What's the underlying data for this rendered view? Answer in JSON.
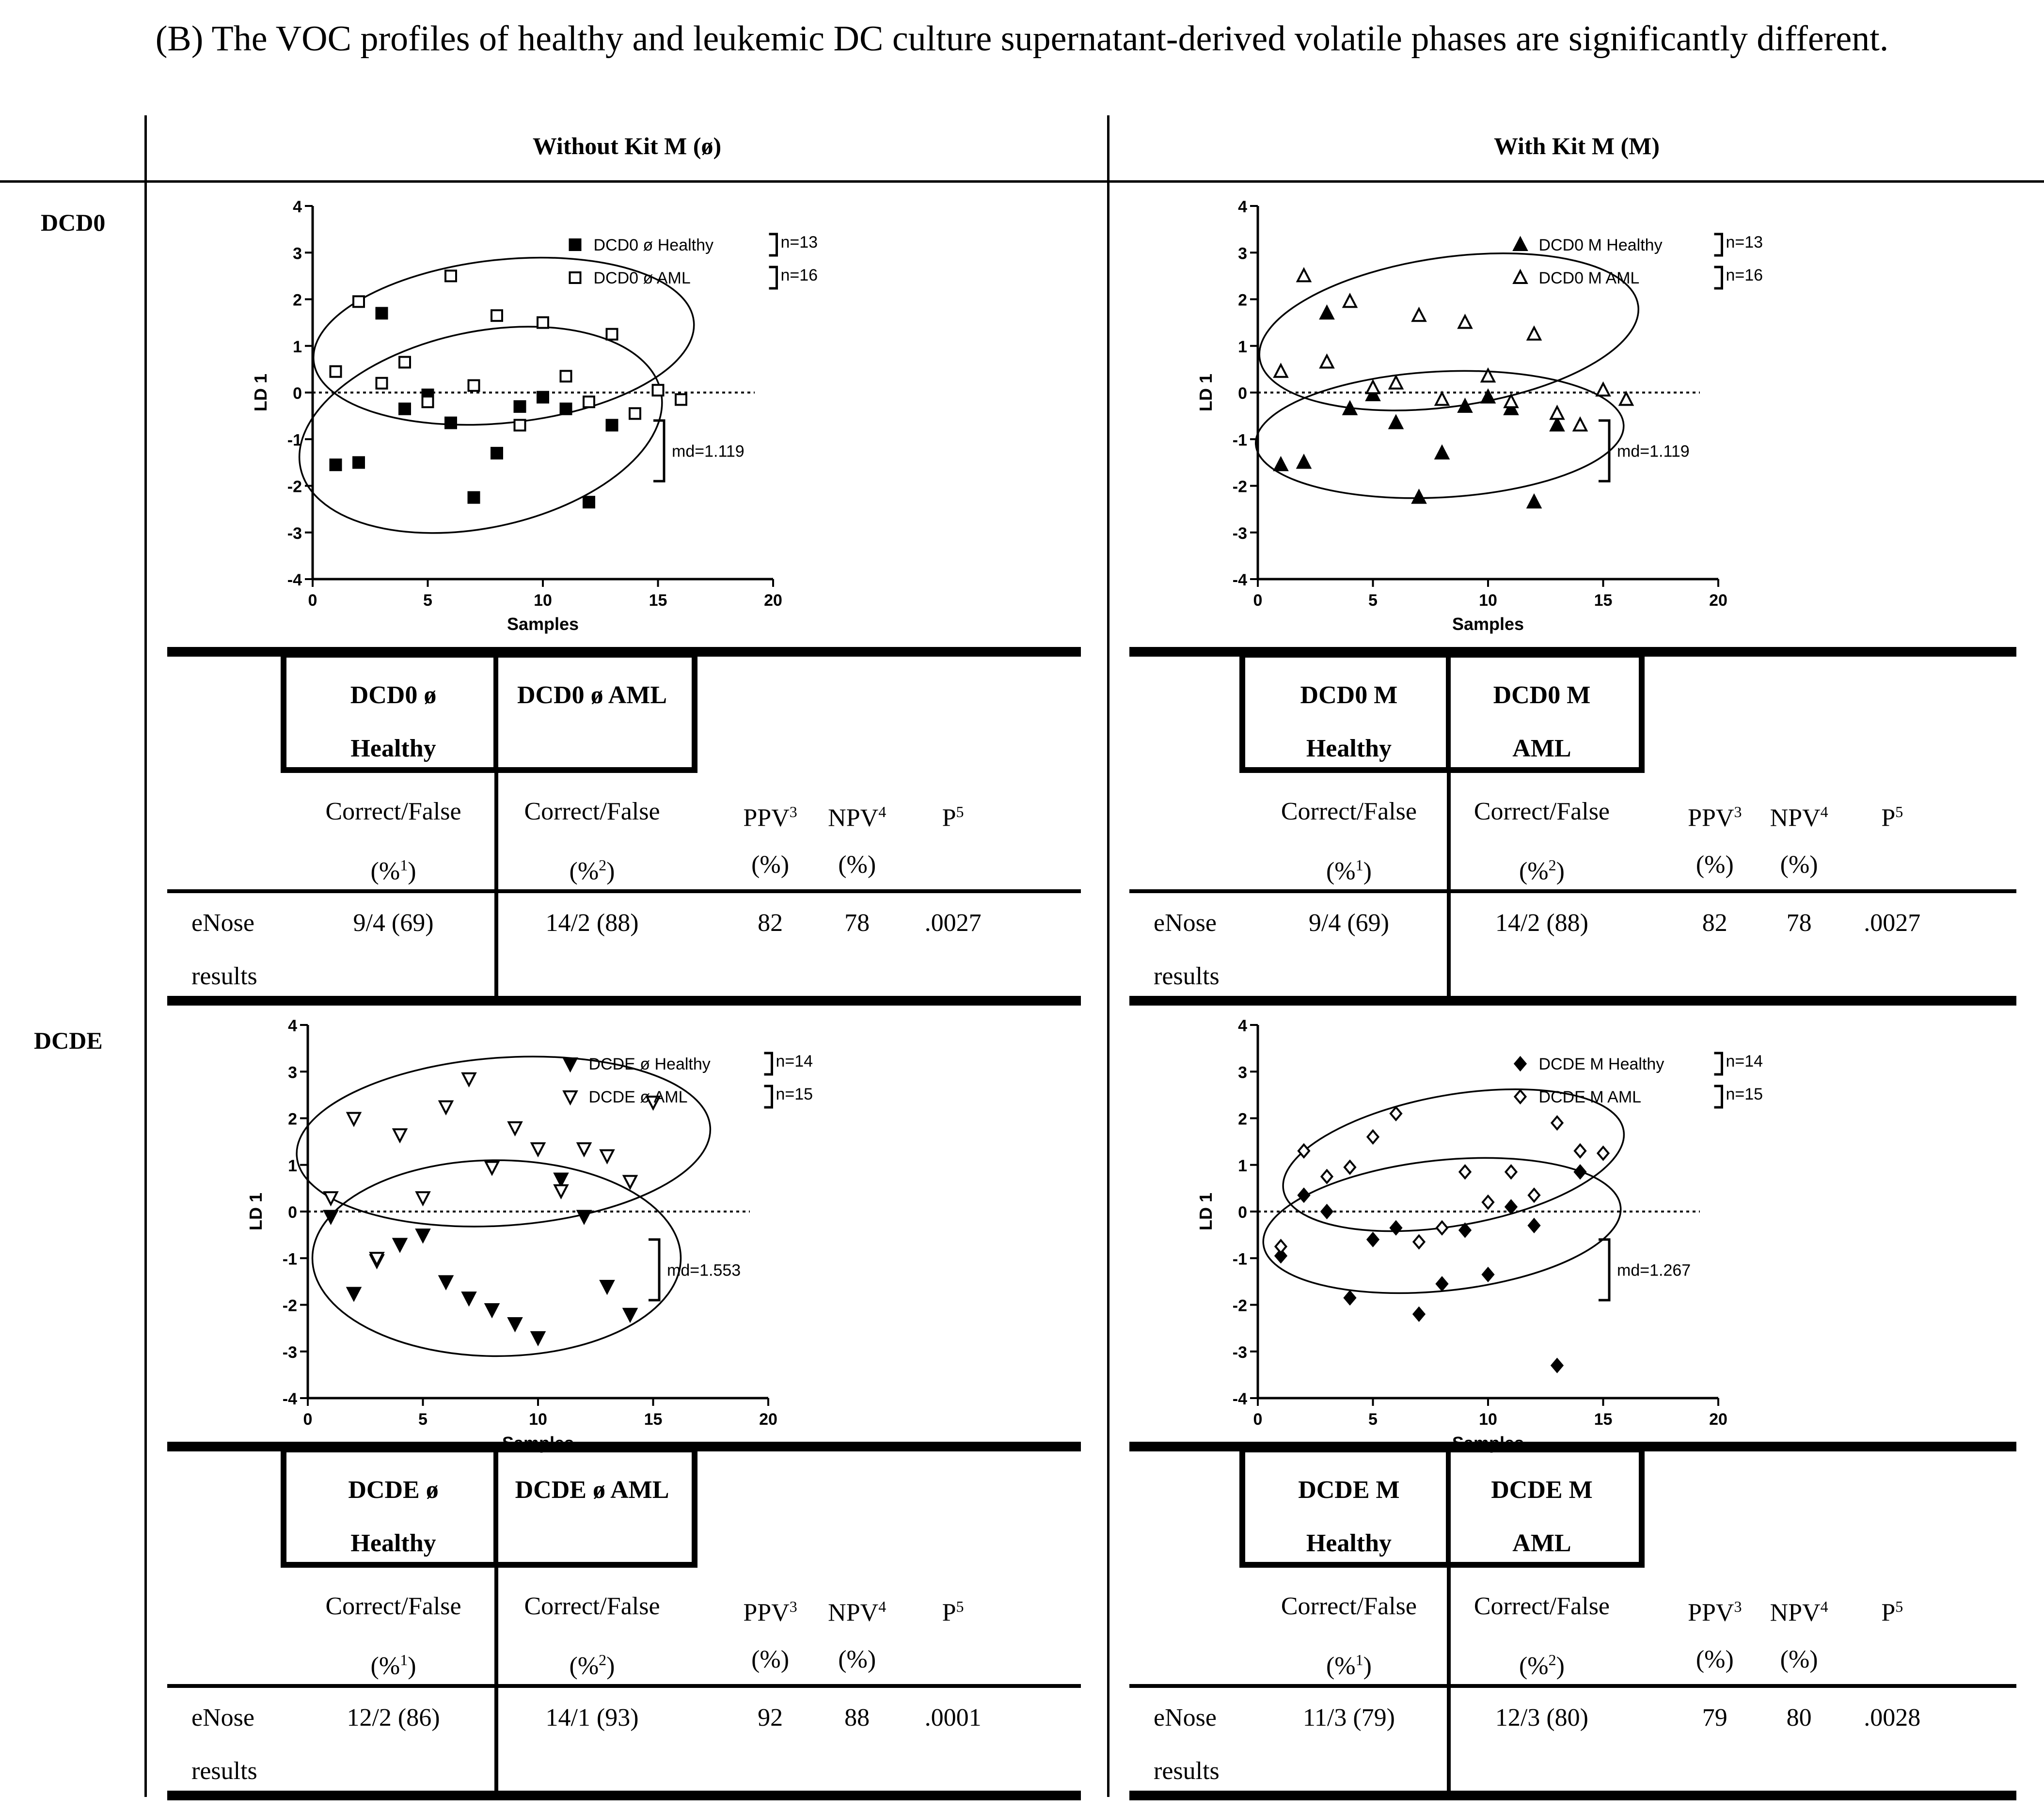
{
  "title": "(B) The VOC profiles of healthy and leukemic DC culture supernatant-derived volatile phases are significantly different.",
  "columns": {
    "without": "Without Kit M (ø)",
    "with": "With Kit M (M)"
  },
  "rows": {
    "dcd0": "DCD0",
    "dcde": "DCDE"
  },
  "chart_data": [
    {
      "type": "scatter",
      "panel": "DCD0 without Kit M",
      "xlabel": "Samples",
      "ylabel": "LD 1",
      "xlim": [
        0,
        20
      ],
      "ylim": [
        -4,
        4
      ],
      "xticks": [
        "0",
        "5",
        "10",
        "15",
        "20"
      ],
      "yticks": [
        "4",
        "3",
        "2",
        "1",
        "0",
        "-1",
        "-2",
        "-3",
        "-4"
      ],
      "marker": "square",
      "series": [
        {
          "name": "DCD0 ø Healthy",
          "n": "n=13",
          "filled": true,
          "points": [
            [
              1,
              -1.55
            ],
            [
              2,
              -1.5
            ],
            [
              3,
              1.7
            ],
            [
              4,
              -0.35
            ],
            [
              5,
              -0.05
            ],
            [
              6,
              -0.65
            ],
            [
              7,
              -2.25
            ],
            [
              8,
              -1.3
            ],
            [
              9,
              -0.3
            ],
            [
              10,
              -0.1
            ],
            [
              11,
              -0.35
            ],
            [
              12,
              -2.35
            ],
            [
              13,
              -0.7
            ]
          ]
        },
        {
          "name": "DCD0 ø AML",
          "n": "n=16",
          "filled": false,
          "points": [
            [
              1,
              0.45
            ],
            [
              2,
              1.95
            ],
            [
              3,
              0.2
            ],
            [
              4,
              0.65
            ],
            [
              5,
              -0.2
            ],
            [
              6,
              2.5
            ],
            [
              7,
              0.15
            ],
            [
              8,
              1.65
            ],
            [
              9,
              -0.7
            ],
            [
              10,
              1.5
            ],
            [
              11,
              0.35
            ],
            [
              12,
              -0.2
            ],
            [
              13,
              1.25
            ],
            [
              14,
              -0.45
            ],
            [
              15,
              0.05
            ],
            [
              16,
              -0.15
            ]
          ]
        }
      ],
      "ellipses": [
        {
          "group": "AML",
          "cx": 8.3,
          "cy": 1.1,
          "rx": 8.3,
          "ry": 1.75,
          "rotation": -6
        },
        {
          "group": "Healthy",
          "cx": 7.3,
          "cy": -0.8,
          "rx": 8.0,
          "ry": 2.1,
          "rotation": -12
        }
      ],
      "annotation": "md=1.119"
    },
    {
      "type": "scatter",
      "panel": "DCD0 with Kit M",
      "xlabel": "Samples",
      "ylabel": "LD 1",
      "xlim": [
        0,
        20
      ],
      "ylim": [
        -4,
        4
      ],
      "xticks": [
        "0",
        "5",
        "10",
        "15",
        "20"
      ],
      "yticks": [
        "4",
        "3",
        "2",
        "1",
        "0",
        "-1",
        "-2",
        "-3",
        "-4"
      ],
      "marker": "triangle-up",
      "series": [
        {
          "name": "DCD0 M Healthy",
          "n": "n=13",
          "filled": true,
          "points": [
            [
              1,
              -1.55
            ],
            [
              2,
              -1.5
            ],
            [
              3,
              1.7
            ],
            [
              4,
              -0.35
            ],
            [
              5,
              -0.05
            ],
            [
              6,
              -0.65
            ],
            [
              7,
              -2.25
            ],
            [
              8,
              -1.3
            ],
            [
              9,
              -0.3
            ],
            [
              10,
              -0.1
            ],
            [
              11,
              -0.35
            ],
            [
              12,
              -2.35
            ],
            [
              13,
              -0.7
            ]
          ]
        },
        {
          "name": "DCD0 M AML",
          "n": "n=16",
          "filled": false,
          "points": [
            [
              1,
              0.45
            ],
            [
              2,
              2.5
            ],
            [
              3,
              0.65
            ],
            [
              4,
              1.95
            ],
            [
              5,
              0.1
            ],
            [
              6,
              0.2
            ],
            [
              7,
              1.65
            ],
            [
              8,
              -0.15
            ],
            [
              9,
              1.5
            ],
            [
              10,
              0.35
            ],
            [
              11,
              -0.2
            ],
            [
              12,
              1.25
            ],
            [
              13,
              -0.45
            ],
            [
              14,
              -0.7
            ],
            [
              15,
              0.05
            ],
            [
              16,
              -0.15
            ]
          ]
        }
      ],
      "ellipses": [
        {
          "group": "AML",
          "cx": 8.3,
          "cy": 1.3,
          "rx": 8.3,
          "ry": 1.6,
          "rotation": -8
        },
        {
          "group": "Healthy",
          "cx": 7.9,
          "cy": -0.9,
          "rx": 8.0,
          "ry": 1.35,
          "rotation": -3
        }
      ],
      "annotation": "md=1.119"
    },
    {
      "type": "scatter",
      "panel": "DCDE without Kit M",
      "xlabel": "Samples",
      "ylabel": "LD 1",
      "xlim": [
        0,
        20
      ],
      "ylim": [
        -4,
        4
      ],
      "xticks": [
        "0",
        "5",
        "10",
        "15",
        "20"
      ],
      "yticks": [
        "4",
        "3",
        "2",
        "1",
        "0",
        "-1",
        "-2",
        "-3",
        "-4"
      ],
      "marker": "triangle-down",
      "series": [
        {
          "name": "DCDE ø Healthy",
          "n": "n=14",
          "filled": true,
          "points": [
            [
              1,
              -0.1
            ],
            [
              2,
              -1.75
            ],
            [
              3,
              -1.05
            ],
            [
              4,
              -0.7
            ],
            [
              5,
              -0.5
            ],
            [
              6,
              -1.5
            ],
            [
              7,
              -1.85
            ],
            [
              8,
              -2.1
            ],
            [
              9,
              -2.4
            ],
            [
              10,
              -2.7
            ],
            [
              11,
              0.7
            ],
            [
              12,
              -0.1
            ],
            [
              13,
              -1.6
            ],
            [
              14,
              -2.2
            ]
          ]
        },
        {
          "name": "DCDE ø AML",
          "n": "n=15",
          "filled": false,
          "points": [
            [
              1,
              0.3
            ],
            [
              2,
              2.0
            ],
            [
              3,
              -1.0
            ],
            [
              4,
              1.65
            ],
            [
              5,
              0.3
            ],
            [
              6,
              2.25
            ],
            [
              7,
              2.85
            ],
            [
              8,
              0.95
            ],
            [
              9,
              1.8
            ],
            [
              10,
              1.35
            ],
            [
              11,
              0.45
            ],
            [
              12,
              1.35
            ],
            [
              13,
              1.2
            ],
            [
              14,
              0.65
            ],
            [
              15,
              2.35
            ]
          ]
        }
      ],
      "ellipses": [
        {
          "group": "AML",
          "cx": 8.5,
          "cy": 1.5,
          "rx": 9.0,
          "ry": 1.8,
          "rotation": -4
        },
        {
          "group": "Healthy",
          "cx": 8.2,
          "cy": -1.0,
          "rx": 8.0,
          "ry": 2.1,
          "rotation": 0
        }
      ],
      "annotation": "md=1.553"
    },
    {
      "type": "scatter",
      "panel": "DCDE with Kit M",
      "xlabel": "Samples",
      "ylabel": "LD 1",
      "xlim": [
        0,
        20
      ],
      "ylim": [
        -4,
        4
      ],
      "xticks": [
        "0",
        "5",
        "10",
        "15",
        "20"
      ],
      "yticks": [
        "4",
        "3",
        "2",
        "1",
        "0",
        "-1",
        "-2",
        "-3",
        "-4"
      ],
      "marker": "diamond",
      "series": [
        {
          "name": "DCDE M Healthy",
          "n": "n=14",
          "filled": true,
          "points": [
            [
              1,
              -0.95
            ],
            [
              2,
              0.35
            ],
            [
              3,
              0.0
            ],
            [
              4,
              -1.85
            ],
            [
              5,
              -0.6
            ],
            [
              6,
              -0.35
            ],
            [
              7,
              -2.2
            ],
            [
              8,
              -1.55
            ],
            [
              9,
              -0.4
            ],
            [
              10,
              -1.35
            ],
            [
              11,
              0.1
            ],
            [
              12,
              -0.3
            ],
            [
              13,
              -3.3
            ],
            [
              14,
              0.85
            ]
          ]
        },
        {
          "name": "DCDE M AML",
          "n": "n=15",
          "filled": false,
          "points": [
            [
              1,
              -0.75
            ],
            [
              2,
              1.3
            ],
            [
              3,
              0.75
            ],
            [
              4,
              0.95
            ],
            [
              5,
              1.6
            ],
            [
              6,
              2.1
            ],
            [
              7,
              -0.65
            ],
            [
              8,
              -0.35
            ],
            [
              9,
              0.85
            ],
            [
              10,
              0.2
            ],
            [
              11,
              0.85
            ],
            [
              12,
              0.35
            ],
            [
              13,
              1.9
            ],
            [
              14,
              1.3
            ],
            [
              15,
              1.25
            ]
          ]
        }
      ],
      "ellipses": [
        {
          "group": "AML",
          "cx": 8.5,
          "cy": 1.1,
          "rx": 7.5,
          "ry": 1.4,
          "rotation": -10
        },
        {
          "group": "Healthy",
          "cx": 8.0,
          "cy": -0.3,
          "rx": 7.8,
          "ry": 1.4,
          "rotation": -6
        }
      ],
      "annotation": "md=1.267"
    }
  ],
  "tables": [
    {
      "label_a": "DCD0 ø",
      "label_a2": "Healthy",
      "label_b": "DCD0 ø AML",
      "label_b2": "",
      "cf": "Correct/False",
      "pct1": "(%",
      "pct1_sup": "1",
      "pct2": "(%",
      "pct2_sup": "2",
      "pct_close": ")",
      "ppv": "PPV",
      "ppv_sup": "3",
      "npv": "NPV",
      "npv_sup": "4",
      "p": "P",
      "p_sup": "5",
      "pct": "(%)",
      "row_label1": "eNose",
      "row_label2": "results",
      "healthy": "9/4 (69)",
      "aml": "14/2 (88)",
      "ppv_val": "82",
      "npv_val": "78",
      "p_val": ".0027"
    },
    {
      "label_a": "DCD0 M",
      "label_a2": "Healthy",
      "label_b": "DCD0 M",
      "label_b2": "AML",
      "cf": "Correct/False",
      "pct1": "(%",
      "pct1_sup": "1",
      "pct2": "(%",
      "pct2_sup": "2",
      "pct_close": ")",
      "ppv": "PPV",
      "ppv_sup": "3",
      "npv": "NPV",
      "npv_sup": "4",
      "p": "P",
      "p_sup": "5",
      "pct": "(%)",
      "row_label1": "eNose",
      "row_label2": "results",
      "healthy": "9/4 (69)",
      "aml": "14/2 (88)",
      "ppv_val": "82",
      "npv_val": "78",
      "p_val": ".0027"
    },
    {
      "label_a": "DCDE ø",
      "label_a2": "Healthy",
      "label_b": "DCDE ø AML",
      "label_b2": "",
      "cf": "Correct/False",
      "pct1": "(%",
      "pct1_sup": "1",
      "pct2": "(%",
      "pct2_sup": "2",
      "pct_close": ")",
      "ppv": "PPV",
      "ppv_sup": "3",
      "npv": "NPV",
      "npv_sup": "4",
      "p": "P",
      "p_sup": "5",
      "pct": "(%)",
      "row_label1": "eNose",
      "row_label2": "results",
      "healthy": "12/2 (86)",
      "aml": "14/1 (93)",
      "ppv_val": "92",
      "npv_val": "88",
      "p_val": ".0001"
    },
    {
      "label_a": "DCDE M",
      "label_a2": "Healthy",
      "label_b": "DCDE M",
      "label_b2": "AML",
      "cf": "Correct/False",
      "pct1": "(%",
      "pct1_sup": "1",
      "pct2": "(%",
      "pct2_sup": "2",
      "pct_close": ")",
      "ppv": "PPV",
      "ppv_sup": "3",
      "npv": "NPV",
      "npv_sup": "4",
      "p": "P",
      "p_sup": "5",
      "pct": "(%)",
      "row_label1": "eNose",
      "row_label2": "results",
      "healthy": "11/3 (79)",
      "aml": "12/3 (80)",
      "ppv_val": "79",
      "npv_val": "80",
      "p_val": ".0028"
    }
  ]
}
